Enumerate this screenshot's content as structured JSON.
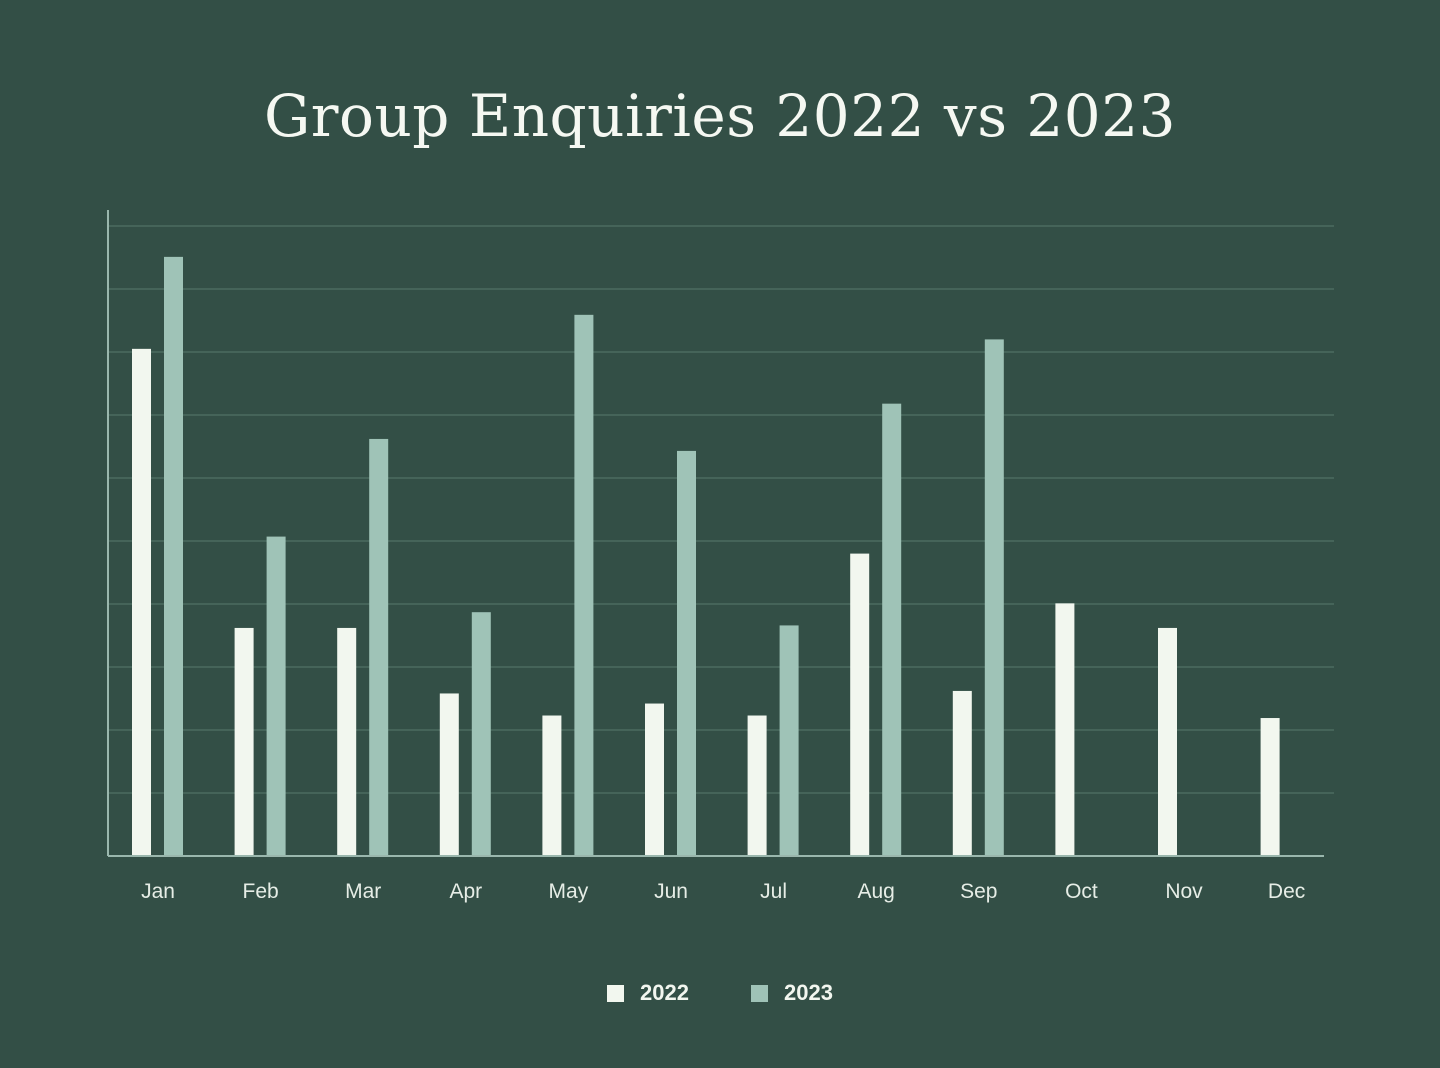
{
  "chart_data": {
    "type": "bar",
    "title": "Group Enquiries 2022 vs 2023",
    "xlabel": "",
    "ylabel": "",
    "categories": [
      "Jan",
      "Feb",
      "Mar",
      "Apr",
      "May",
      "Jun",
      "Jul",
      "Aug",
      "Sep",
      "Oct",
      "Nov",
      "Dec"
    ],
    "series": [
      {
        "name": "2022",
        "color": "#f2f7ef",
        "values": [
          80.5,
          36.2,
          36.2,
          25.8,
          22.3,
          24.2,
          22.3,
          48.0,
          26.2,
          40.1,
          36.2,
          21.9
        ]
      },
      {
        "name": "2023",
        "color": "#9fc3b7",
        "values": [
          95.1,
          50.7,
          66.2,
          38.7,
          85.9,
          64.3,
          36.6,
          71.8,
          82.0,
          null,
          null,
          null
        ]
      }
    ],
    "ylim": [
      0,
      100
    ],
    "y_gridlines": [
      10,
      20,
      30,
      40,
      50,
      60,
      70,
      80,
      90,
      100
    ],
    "y_tick_labels_shown": false,
    "grid": true,
    "legend_position": "bottom-center"
  },
  "style": {
    "background": "#334f46",
    "grid_color": "#456459",
    "axis_color": "#9ab7ad"
  }
}
